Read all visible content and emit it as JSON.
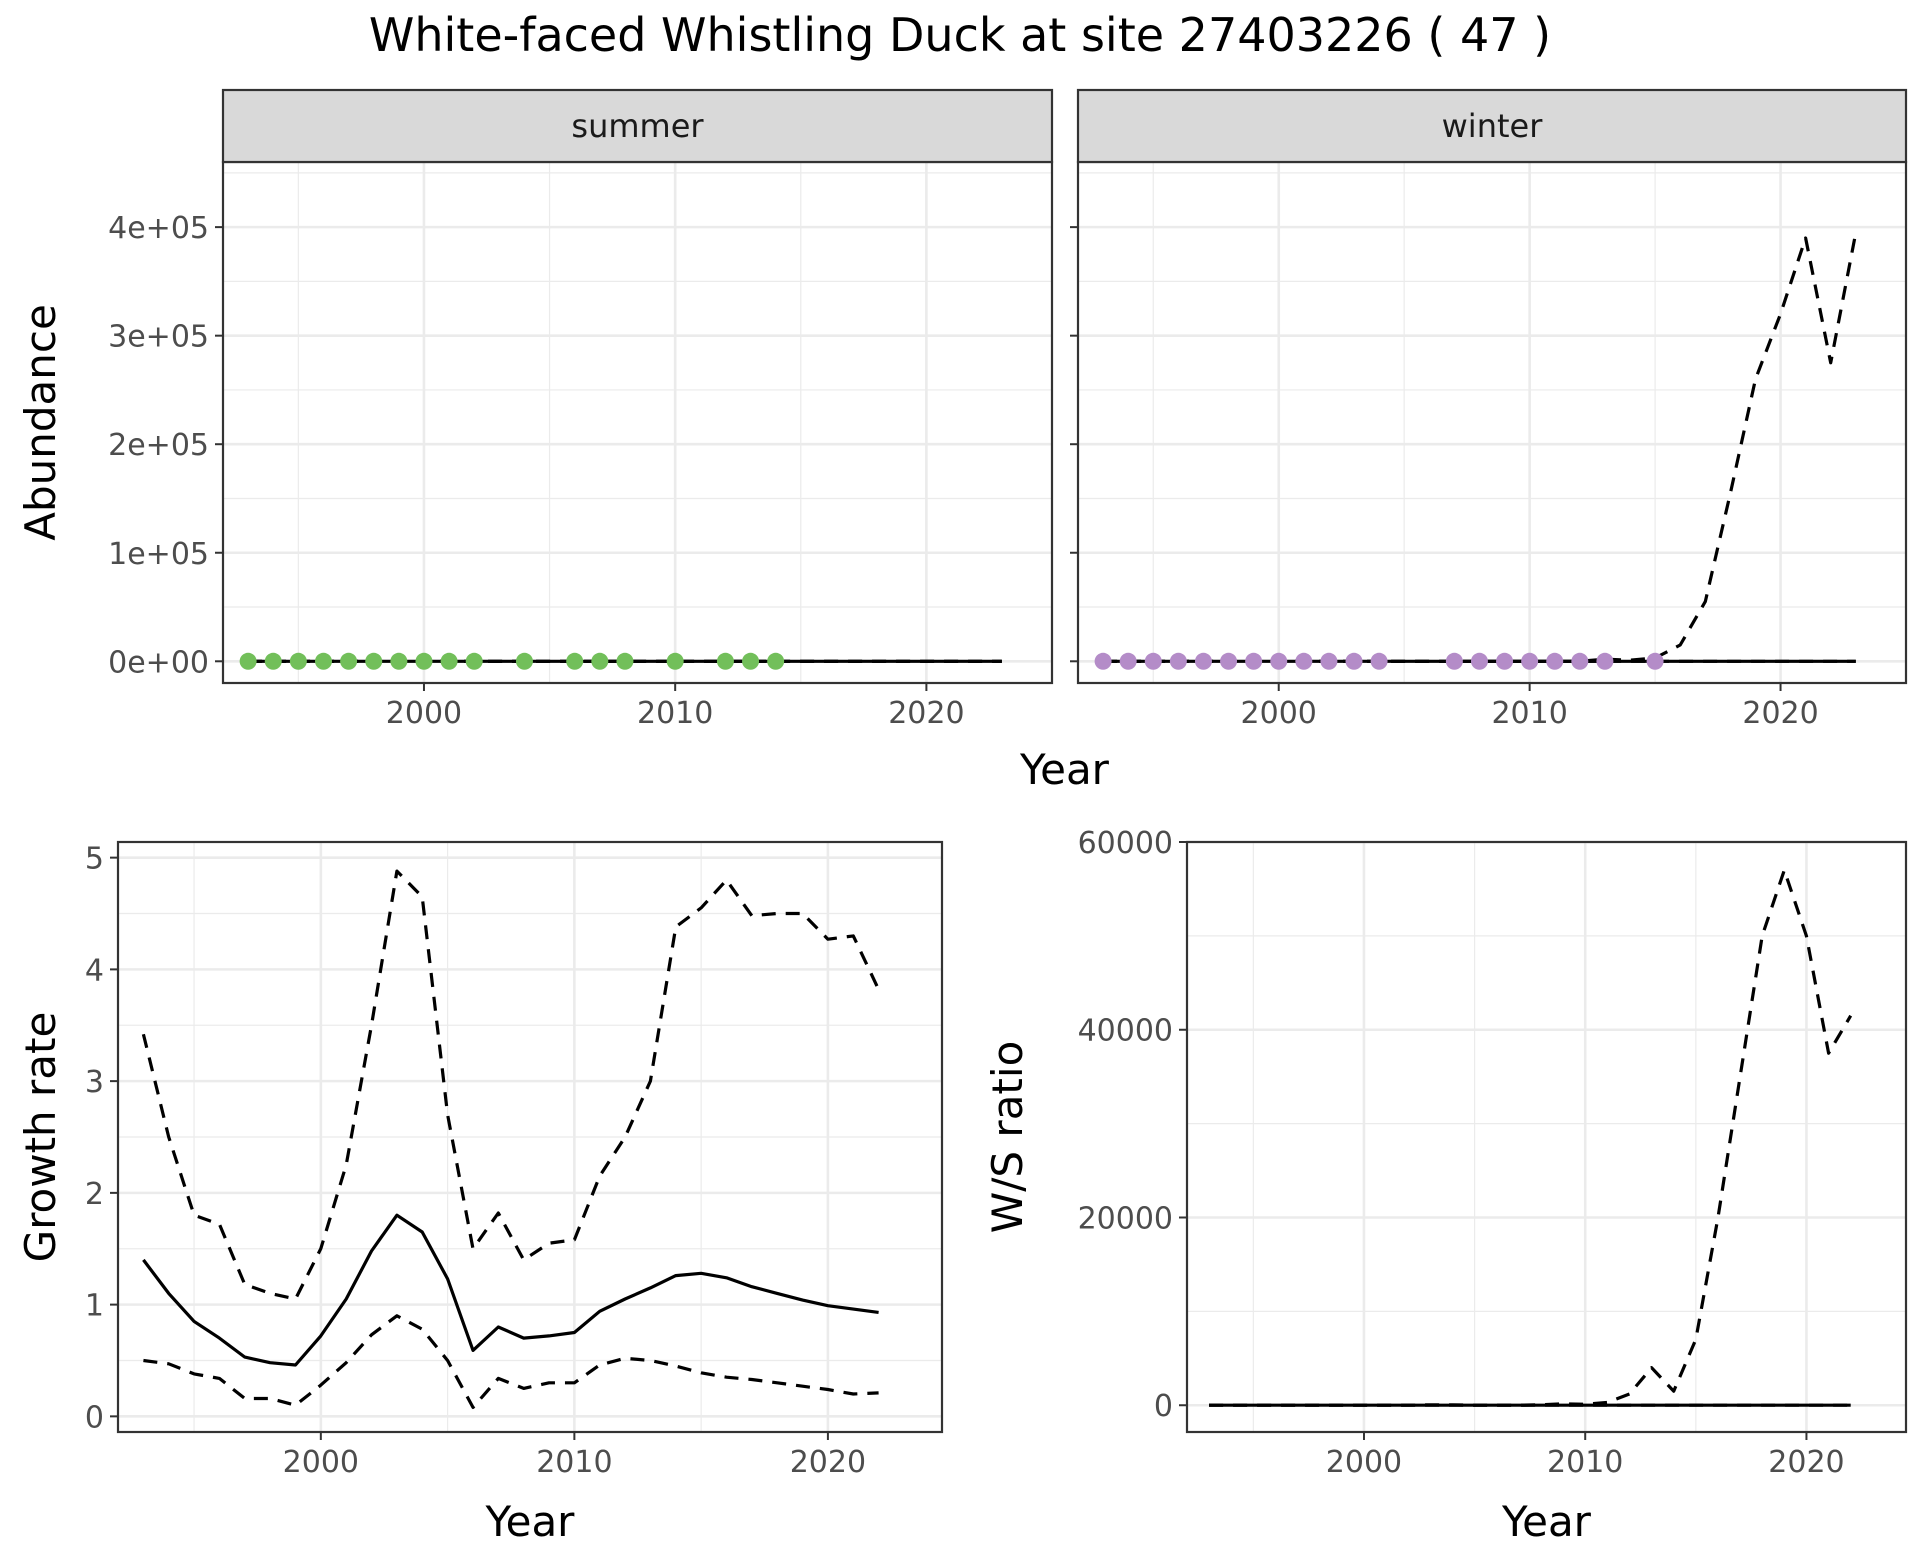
{
  "title": "White-faced Whistling Duck at site 27403226 ( 47 )",
  "colors": {
    "summer_points": "#72bf5a",
    "winter_points": "#b48cc8",
    "line": "#000000",
    "grid": "#ebebeb",
    "strip_fill": "#d9d9d9"
  },
  "chart_data": [
    {
      "type": "scatter",
      "panel": "summer",
      "title": "White-faced Whistling Duck at site 27403226 ( 47 )",
      "strip_label": "summer",
      "xlabel": "Year",
      "ylabel": "Abundance",
      "xlim": [
        1992,
        2025
      ],
      "ylim": [
        -20000,
        460000
      ],
      "x_ticks": [
        2000,
        2010,
        2020
      ],
      "x_tick_labels": [
        "2000",
        "2010",
        "2020"
      ],
      "y_ticks": [
        0,
        100000,
        200000,
        300000,
        400000
      ],
      "y_tick_labels": [
        "0e+00",
        "1e+05",
        "2e+05",
        "3e+05",
        "4e+05"
      ],
      "grid": true,
      "points": {
        "x": [
          1993,
          1994,
          1995,
          1996,
          1997,
          1998,
          1999,
          2000,
          2001,
          2002,
          2004,
          2006,
          2007,
          2008,
          2010,
          2012,
          2013,
          2014
        ],
        "y": [
          0,
          0,
          0,
          0,
          0,
          0,
          0,
          0,
          0,
          0,
          0,
          0,
          0,
          0,
          0,
          0,
          0,
          0
        ]
      },
      "series": [
        {
          "style": "solid",
          "x": [
            1993,
            2023
          ],
          "y": [
            0,
            0
          ]
        },
        {
          "style": "dashed",
          "x": [
            1993,
            2023
          ],
          "y": [
            0,
            0
          ]
        },
        {
          "style": "dashed",
          "x": [
            1993,
            2023
          ],
          "y": [
            0,
            0
          ]
        }
      ]
    },
    {
      "type": "scatter",
      "panel": "winter",
      "strip_label": "winter",
      "xlabel": "Year",
      "xlim": [
        1992,
        2025
      ],
      "ylim": [
        -20000,
        460000
      ],
      "x_ticks": [
        2000,
        2010,
        2020
      ],
      "x_tick_labels": [
        "2000",
        "2010",
        "2020"
      ],
      "y_ticks": [
        0,
        100000,
        200000,
        300000,
        400000
      ],
      "grid": true,
      "points": {
        "x": [
          1993,
          1994,
          1995,
          1996,
          1997,
          1998,
          1999,
          2000,
          2001,
          2002,
          2003,
          2004,
          2007,
          2008,
          2009,
          2010,
          2011,
          2012,
          2013,
          2015
        ],
        "y": [
          0,
          0,
          0,
          0,
          0,
          0,
          0,
          0,
          0,
          0,
          0,
          0,
          0,
          0,
          0,
          0,
          0,
          0,
          0,
          0
        ]
      },
      "series": [
        {
          "style": "solid",
          "x": [
            1993,
            2023
          ],
          "y": [
            0,
            0
          ]
        },
        {
          "style": "dashed",
          "x": [
            1993,
            2012,
            2013,
            2014,
            2015,
            2016,
            2017,
            2018,
            2019,
            2020,
            2021,
            2022,
            2023
          ],
          "y": [
            0,
            0,
            2000,
            1000,
            3000,
            15000,
            55000,
            155000,
            260000,
            320000,
            390000,
            275000,
            395000
          ]
        },
        {
          "style": "dashed",
          "x": [
            1993,
            2023
          ],
          "y": [
            0,
            0
          ]
        }
      ]
    },
    {
      "type": "line",
      "panel": "growth",
      "xlabel": "Year",
      "ylabel": "Growth rate",
      "xlim": [
        1992,
        2024.5
      ],
      "ylim": [
        -0.14,
        5.14
      ],
      "x_ticks": [
        2000,
        2010,
        2020
      ],
      "x_tick_labels": [
        "2000",
        "2010",
        "2020"
      ],
      "y_ticks": [
        0,
        1,
        2,
        3,
        4,
        5
      ],
      "y_tick_labels": [
        "0",
        "1",
        "2",
        "3",
        "4",
        "5"
      ],
      "grid": true,
      "x": [
        1993,
        1994,
        1995,
        1996,
        1997,
        1998,
        1999,
        2000,
        2001,
        2002,
        2003,
        2004,
        2005,
        2006,
        2007,
        2008,
        2009,
        2010,
        2011,
        2012,
        2013,
        2014,
        2015,
        2016,
        2017,
        2018,
        2019,
        2020,
        2021,
        2022
      ],
      "series": [
        {
          "style": "solid",
          "values": [
            1.4,
            1.1,
            0.85,
            0.7,
            0.53,
            0.48,
            0.46,
            0.72,
            1.05,
            1.48,
            1.8,
            1.65,
            1.23,
            0.59,
            0.8,
            0.7,
            0.72,
            0.75,
            0.94,
            1.05,
            1.15,
            1.26,
            1.28,
            1.24,
            1.16,
            1.1,
            1.04,
            0.99,
            0.96,
            0.93
          ]
        },
        {
          "style": "dashed",
          "values": [
            3.42,
            2.5,
            1.8,
            1.72,
            1.18,
            1.1,
            1.05,
            1.5,
            2.25,
            3.5,
            4.88,
            4.65,
            2.7,
            1.5,
            1.82,
            1.4,
            1.55,
            1.58,
            2.15,
            2.5,
            3.0,
            4.38,
            4.55,
            4.8,
            4.48,
            4.5,
            4.5,
            4.27,
            4.3,
            3.82
          ]
        },
        {
          "style": "dashed",
          "values": [
            0.5,
            0.47,
            0.38,
            0.34,
            0.16,
            0.16,
            0.1,
            0.28,
            0.48,
            0.73,
            0.9,
            0.78,
            0.5,
            0.08,
            0.34,
            0.25,
            0.3,
            0.3,
            0.46,
            0.52,
            0.5,
            0.45,
            0.39,
            0.35,
            0.33,
            0.3,
            0.27,
            0.24,
            0.2,
            0.21
          ]
        }
      ]
    },
    {
      "type": "line",
      "panel": "ratio",
      "xlabel": "Year",
      "ylabel": "W/S ratio",
      "xlim": [
        1992,
        2024.5
      ],
      "ylim": [
        -2850,
        60000
      ],
      "x_ticks": [
        2000,
        2010,
        2020
      ],
      "x_tick_labels": [
        "2000",
        "2010",
        "2020"
      ],
      "y_ticks": [
        0,
        20000,
        40000,
        60000
      ],
      "y_tick_labels": [
        "0",
        "20000",
        "40000",
        "60000"
      ],
      "grid": true,
      "x": [
        1993,
        1994,
        1995,
        1996,
        1997,
        1998,
        1999,
        2000,
        2001,
        2002,
        2003,
        2004,
        2005,
        2006,
        2007,
        2008,
        2009,
        2010,
        2011,
        2012,
        2013,
        2014,
        2015,
        2016,
        2017,
        2018,
        2019,
        2020,
        2021,
        2022
      ],
      "series": [
        {
          "style": "solid",
          "values": [
            0,
            0,
            0,
            0,
            0,
            0,
            0,
            0,
            0,
            0,
            0,
            0,
            0,
            0,
            0,
            0,
            0,
            0,
            0,
            0,
            0,
            0,
            0,
            0,
            0,
            0,
            0,
            0,
            0,
            0
          ]
        },
        {
          "style": "dashed",
          "values": [
            0,
            0,
            0,
            0,
            0,
            0,
            0,
            0,
            0,
            0,
            50,
            50,
            0,
            0,
            0,
            50,
            150,
            100,
            300,
            1200,
            4000,
            1500,
            7000,
            20000,
            35000,
            50000,
            57000,
            50000,
            37500,
            41500
          ]
        },
        {
          "style": "dashed",
          "values": [
            0,
            0,
            0,
            0,
            0,
            0,
            0,
            0,
            0,
            0,
            0,
            0,
            0,
            0,
            0,
            0,
            0,
            0,
            0,
            0,
            0,
            0,
            0,
            0,
            0,
            0,
            0,
            0,
            0,
            0
          ]
        }
      ]
    }
  ]
}
